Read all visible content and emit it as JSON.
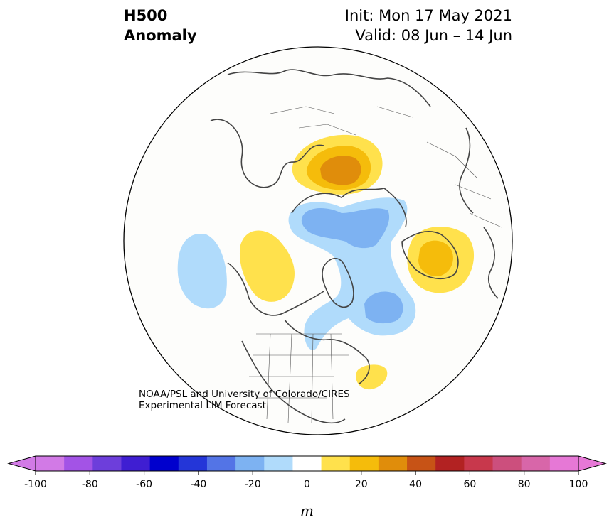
{
  "title": {
    "variable_line1": "H500",
    "variable_line2": "Anomaly",
    "init": "Init: Mon 17 May 2021",
    "valid": "Valid: 08 Jun – 14 Jun"
  },
  "credit": {
    "line1": "NOAA/PSL and University of Colorado/CIRES",
    "line2": "Experimental LIM Forecast"
  },
  "colorbar": {
    "unit_label": "m",
    "ticks": [
      "-100",
      "-80",
      "-60",
      "-40",
      "-20",
      "0",
      "20",
      "40",
      "60",
      "80",
      "100"
    ],
    "levels": [
      -100,
      -90,
      -80,
      -70,
      -60,
      -50,
      -40,
      -30,
      -20,
      -10,
      10,
      20,
      30,
      40,
      50,
      60,
      70,
      80,
      90,
      100
    ],
    "colors": [
      "#d27ae6",
      "#a353e6",
      "#6d3edb",
      "#3f1ed2",
      "#0000cd",
      "#2436d8",
      "#5374e6",
      "#7db2f2",
      "#b0dbfb",
      "#ffffff",
      "#ffe14c",
      "#f5bc0b",
      "#e08d0b",
      "#c75316",
      "#b22222",
      "#c8384c",
      "#cc4f7d",
      "#d866a9",
      "#e678d6"
    ],
    "under_color": "#d27ae6",
    "over_color": "#e678d6"
  },
  "map": {
    "projection": "north polar stereographic",
    "ocean_color": "#fdfdfb",
    "coast_color": "#444444"
  }
}
